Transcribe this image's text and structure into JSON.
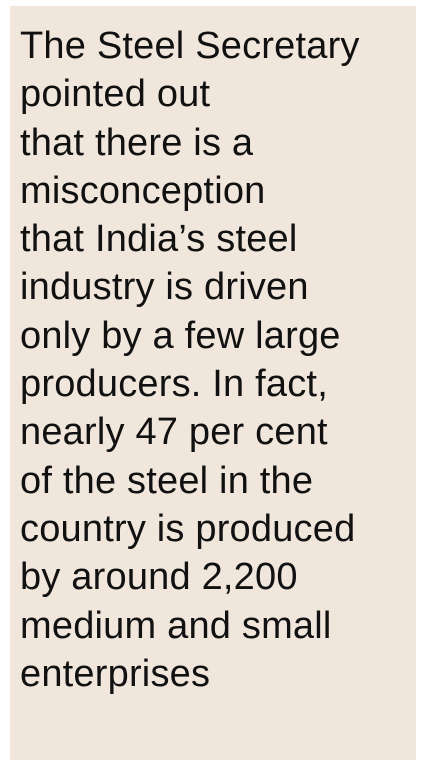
{
  "callout": {
    "lines": [
      "The Steel Secretary",
      "pointed out",
      "that there is a",
      "misconception",
      "that India’s steel",
      "industry is driven",
      "only by a few large",
      "producers. In fact,",
      "nearly 47 per cent",
      "of the steel in the",
      "country is produced",
      "by around 2,200",
      "medium and small",
      "enterprises"
    ],
    "background_color": "#f0e6dc",
    "text_color": "#111111"
  }
}
